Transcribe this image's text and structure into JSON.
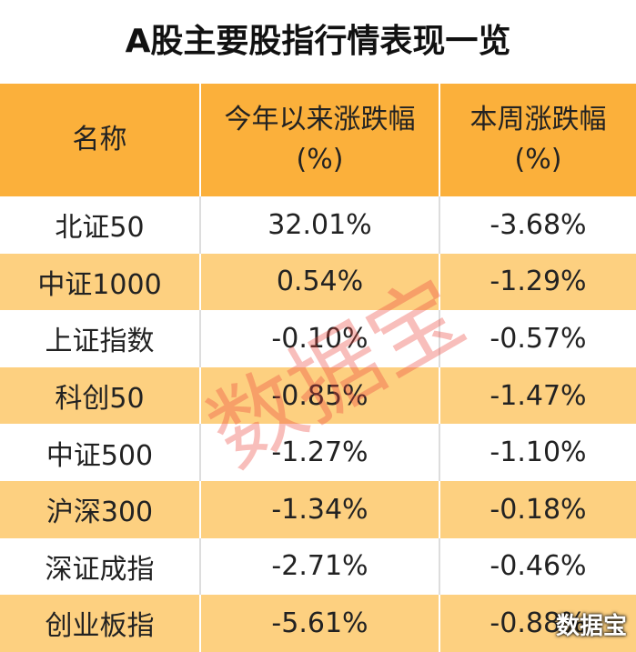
{
  "header": {
    "title": "A股主要股指行情表现一览"
  },
  "table": {
    "columns": [
      [
        "名称"
      ],
      [
        "今年以来涨跌幅",
        "(%)"
      ],
      [
        "本周涨跌幅",
        "(%)"
      ]
    ],
    "rows": [
      [
        "北证50",
        "32.01%",
        "-3.68%"
      ],
      [
        "中证1000",
        "0.54%",
        "-1.29%"
      ],
      [
        "上证指数",
        "-0.10%",
        "-0.57%"
      ],
      [
        "科创50",
        "-0.85%",
        "-1.47%"
      ],
      [
        "中证500",
        "-1.27%",
        "-1.10%"
      ],
      [
        "沪深300",
        "-1.34%",
        "-0.18%"
      ],
      [
        "深证成指",
        "-2.71%",
        "-0.46%"
      ],
      [
        "创业板指",
        "-5.61%",
        "-0.88%"
      ]
    ]
  },
  "watermark": "数据宝",
  "logo": "数据宝"
}
